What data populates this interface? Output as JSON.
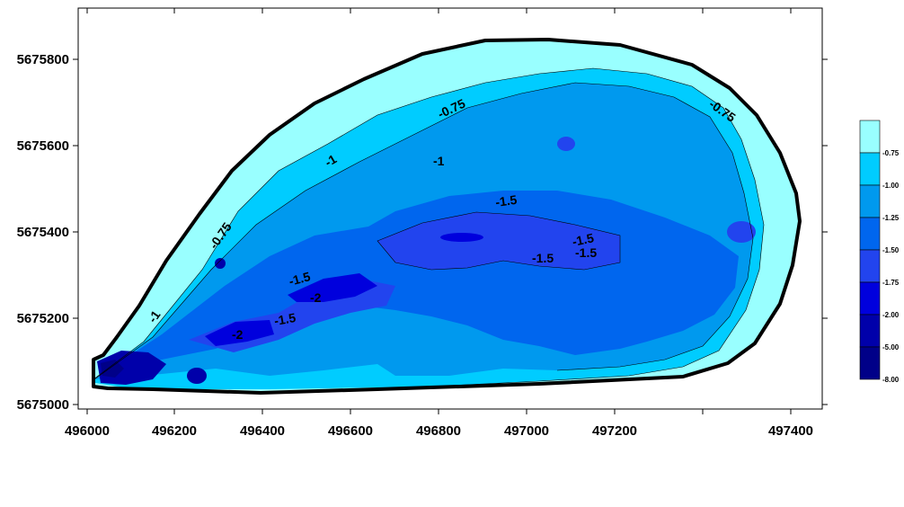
{
  "map": {
    "x_ticks": [
      "496000",
      "496200",
      "496400",
      "496600",
      "496800",
      "497000",
      "497200",
      "497400"
    ],
    "y_ticks": [
      "5675800",
      "5675600",
      "5675400",
      "5675200",
      "5675000"
    ],
    "contour_labels": [
      "-0.75",
      "-0.75",
      "-0.75",
      "-1",
      "-1",
      "-1",
      "-1.5",
      "-1.5",
      "-1.5",
      "-1.5",
      "-1.5",
      "-1.5",
      "-2",
      "-2"
    ],
    "colors": {
      "outside": "#ffffff",
      "c075": "#99ffff",
      "c100": "#00ccff",
      "c125": "#0099ee",
      "c150": "#0066ee",
      "c175": "#2244ee",
      "c200": "#0000dd",
      "c500": "#0000aa",
      "c800": "#000088"
    }
  },
  "legend": {
    "labels": [
      "-0.75",
      "-1.00",
      "-1.25",
      "-1.50",
      "-1.75",
      "-2.00",
      "-5.00",
      "-8.00"
    ],
    "colors": [
      "#99ffff",
      "#00ccff",
      "#0099ee",
      "#0066ee",
      "#2244ee",
      "#0000dd",
      "#0000aa",
      "#000088"
    ]
  }
}
